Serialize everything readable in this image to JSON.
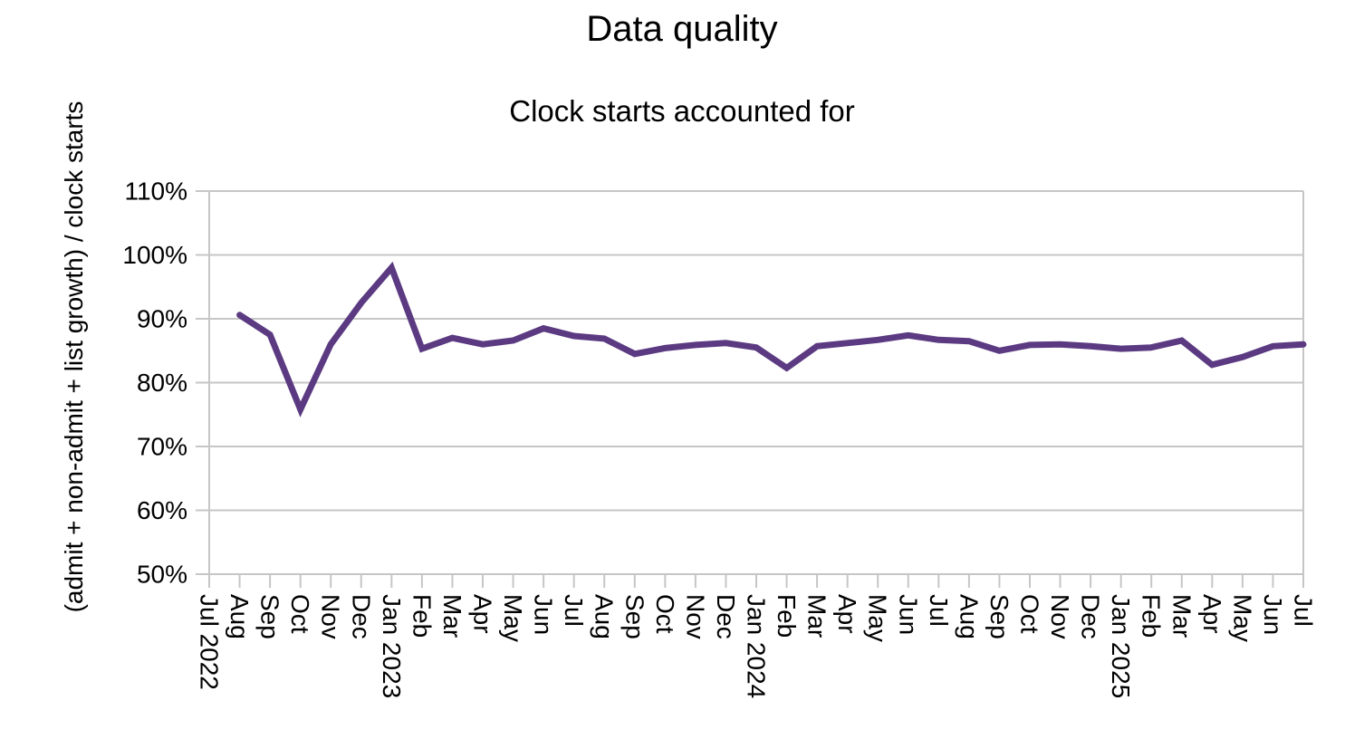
{
  "chart_data": {
    "type": "line",
    "title": "Data quality",
    "subtitle": "Clock starts accounted for",
    "ylabel": "(admit + non-admit + list growth) / clock starts",
    "xlabel": "",
    "ylim": [
      50,
      110
    ],
    "ytick_step": 10,
    "ytick_suffix": "%",
    "grid": true,
    "legend": false,
    "line_color": "#5b3a82",
    "grid_color": "#c6c6c6",
    "text_color": "#000000",
    "categories": [
      "Jul 2022",
      "Aug",
      "Sep",
      "Oct",
      "Nov",
      "Dec",
      "Jan 2023",
      "Feb",
      "Mar",
      "Apr",
      "May",
      "Jun",
      "Jul",
      "Aug",
      "Sep",
      "Oct",
      "Nov",
      "Dec",
      "Jan 2024",
      "Feb",
      "Mar",
      "Apr",
      "May",
      "Jun",
      "Jul",
      "Aug",
      "Sep",
      "Oct",
      "Nov",
      "Dec",
      "Jan 2025",
      "Feb",
      "Mar",
      "Apr",
      "May",
      "Jun",
      "Jul"
    ],
    "values": [
      null,
      90.6,
      87.5,
      75.8,
      86.0,
      92.5,
      98.0,
      85.3,
      87.0,
      86.0,
      86.6,
      88.5,
      87.3,
      86.9,
      84.5,
      85.4,
      85.9,
      86.2,
      85.5,
      82.3,
      85.7,
      86.2,
      86.7,
      87.4,
      86.7,
      86.5,
      85.0,
      85.9,
      86.0,
      85.7,
      85.3,
      85.5,
      86.6,
      82.8,
      84.0,
      85.7,
      86.0
    ]
  }
}
